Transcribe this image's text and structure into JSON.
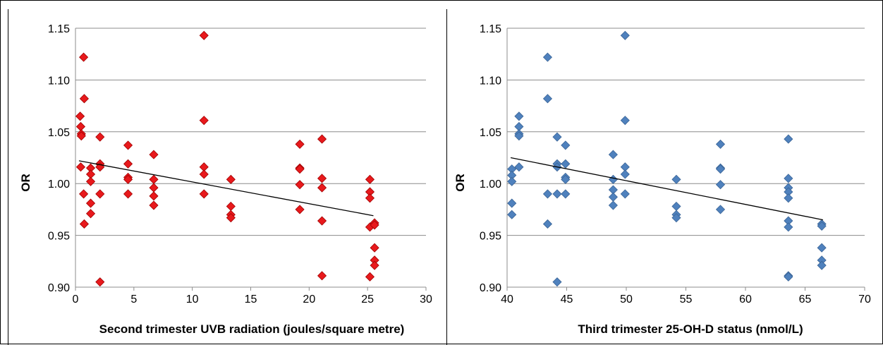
{
  "chart_data": [
    {
      "type": "scatter",
      "xlabel": "Second trimester UVB radiation (joules/square metre)",
      "ylabel": "OR",
      "xlim": [
        0,
        30
      ],
      "ylim": [
        0.9,
        1.15
      ],
      "xticks": [
        0,
        5,
        10,
        15,
        20,
        25,
        30
      ],
      "yticks": [
        0.9,
        0.95,
        1.0,
        1.05,
        1.1,
        1.15
      ],
      "xtick_labels": [
        "0",
        "5",
        "10",
        "15",
        "20",
        "25",
        "30"
      ],
      "ytick_labels": [
        "0.90",
        "0.95",
        "1.00",
        "1.05",
        "1.10",
        "1.15"
      ],
      "grid": "horizontal",
      "marker_color": "#e8191c",
      "marker_edge": "#a00000",
      "trendline": {
        "x": [
          0.3,
          25.5
        ],
        "y": [
          1.022,
          0.969
        ]
      },
      "points": [
        [
          0.4,
          1.065
        ],
        [
          0.45,
          1.055
        ],
        [
          0.5,
          1.048
        ],
        [
          0.5,
          1.046
        ],
        [
          0.45,
          1.016
        ],
        [
          0.7,
          1.122
        ],
        [
          0.75,
          1.082
        ],
        [
          0.7,
          0.99
        ],
        [
          0.75,
          0.961
        ],
        [
          1.3,
          1.015
        ],
        [
          1.3,
          1.009
        ],
        [
          1.3,
          1.002
        ],
        [
          1.3,
          0.981
        ],
        [
          1.3,
          0.971
        ],
        [
          2.1,
          1.045
        ],
        [
          2.1,
          1.019
        ],
        [
          2.1,
          1.016
        ],
        [
          2.1,
          0.99
        ],
        [
          2.1,
          0.905
        ],
        [
          4.5,
          1.037
        ],
        [
          4.5,
          1.019
        ],
        [
          4.5,
          1.006
        ],
        [
          4.5,
          1.004
        ],
        [
          4.5,
          0.99
        ],
        [
          6.7,
          1.028
        ],
        [
          6.7,
          1.004
        ],
        [
          6.7,
          0.996
        ],
        [
          6.7,
          0.988
        ],
        [
          6.7,
          0.979
        ],
        [
          11.0,
          1.143
        ],
        [
          11.0,
          1.061
        ],
        [
          11.0,
          1.016
        ],
        [
          11.0,
          1.009
        ],
        [
          11.0,
          0.99
        ],
        [
          13.3,
          1.004
        ],
        [
          13.3,
          0.978
        ],
        [
          13.3,
          0.97
        ],
        [
          13.3,
          0.967
        ],
        [
          19.2,
          1.038
        ],
        [
          19.2,
          1.015
        ],
        [
          19.2,
          1.014
        ],
        [
          19.2,
          0.999
        ],
        [
          19.2,
          0.975
        ],
        [
          21.1,
          1.043
        ],
        [
          21.1,
          1.005
        ],
        [
          21.1,
          0.996
        ],
        [
          21.1,
          0.964
        ],
        [
          21.1,
          0.911
        ],
        [
          25.2,
          1.004
        ],
        [
          25.2,
          0.992
        ],
        [
          25.2,
          0.986
        ],
        [
          25.2,
          0.958
        ],
        [
          25.2,
          0.91
        ],
        [
          25.6,
          0.962
        ],
        [
          25.6,
          0.96
        ],
        [
          25.6,
          0.938
        ],
        [
          25.6,
          0.926
        ],
        [
          25.6,
          0.921
        ]
      ]
    },
    {
      "type": "scatter",
      "xlabel": "Third trimester 25-OH-D status (nmol/L)",
      "ylabel": "OR",
      "xlim": [
        40,
        70
      ],
      "ylim": [
        0.9,
        1.15
      ],
      "xticks": [
        40,
        45,
        50,
        55,
        60,
        65,
        70
      ],
      "yticks": [
        0.9,
        0.95,
        1.0,
        1.05,
        1.1,
        1.15
      ],
      "xtick_labels": [
        "40",
        "45",
        "50",
        "55",
        "60",
        "65",
        "70"
      ],
      "ytick_labels": [
        "0.90",
        "0.95",
        "1.00",
        "1.05",
        "1.10",
        "1.15"
      ],
      "grid": "horizontal",
      "marker_color": "#4f81bd",
      "marker_edge": "#3a6496",
      "trendline": {
        "x": [
          40.3,
          66.5
        ],
        "y": [
          1.025,
          0.965
        ]
      },
      "points": [
        [
          40.4,
          1.014
        ],
        [
          40.4,
          1.008
        ],
        [
          40.4,
          1.002
        ],
        [
          40.4,
          0.981
        ],
        [
          40.4,
          0.97
        ],
        [
          41.0,
          1.065
        ],
        [
          41.0,
          1.055
        ],
        [
          41.0,
          1.048
        ],
        [
          41.0,
          1.046
        ],
        [
          41.0,
          1.016
        ],
        [
          43.4,
          1.122
        ],
        [
          43.4,
          1.082
        ],
        [
          43.4,
          0.99
        ],
        [
          43.4,
          0.961
        ],
        [
          44.2,
          1.045
        ],
        [
          44.2,
          1.019
        ],
        [
          44.2,
          1.016
        ],
        [
          44.2,
          0.99
        ],
        [
          44.2,
          0.905
        ],
        [
          44.9,
          1.037
        ],
        [
          44.9,
          1.019
        ],
        [
          44.9,
          1.006
        ],
        [
          44.9,
          1.004
        ],
        [
          44.9,
          0.99
        ],
        [
          48.9,
          1.028
        ],
        [
          48.9,
          1.004
        ],
        [
          48.9,
          0.994
        ],
        [
          48.9,
          0.987
        ],
        [
          48.9,
          0.979
        ],
        [
          49.9,
          1.143
        ],
        [
          49.9,
          1.061
        ],
        [
          49.9,
          1.016
        ],
        [
          49.9,
          1.009
        ],
        [
          49.9,
          0.99
        ],
        [
          54.2,
          1.004
        ],
        [
          54.2,
          0.978
        ],
        [
          54.2,
          0.97
        ],
        [
          54.2,
          0.967
        ],
        [
          57.9,
          1.038
        ],
        [
          57.9,
          1.015
        ],
        [
          57.9,
          1.014
        ],
        [
          57.9,
          0.999
        ],
        [
          57.9,
          0.975
        ],
        [
          63.6,
          1.043
        ],
        [
          63.6,
          1.005
        ],
        [
          63.6,
          0.996
        ],
        [
          63.6,
          0.992
        ],
        [
          63.6,
          0.986
        ],
        [
          63.6,
          0.964
        ],
        [
          63.6,
          0.958
        ],
        [
          63.6,
          0.911
        ],
        [
          63.6,
          0.91
        ],
        [
          66.4,
          0.961
        ],
        [
          66.4,
          0.959
        ],
        [
          66.4,
          0.938
        ],
        [
          66.4,
          0.926
        ],
        [
          66.4,
          0.921
        ]
      ]
    }
  ]
}
